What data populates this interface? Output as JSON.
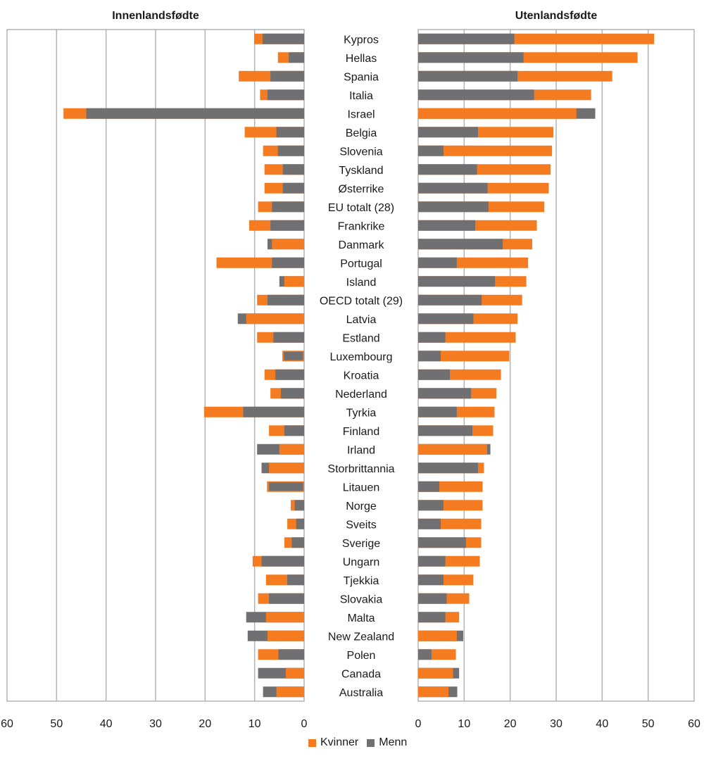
{
  "colors": {
    "kvinner": "#f47b20",
    "menn": "#707073",
    "grid": "#b3b3b3"
  },
  "chart_data": {
    "type": "bar",
    "orientation": "horizontal",
    "layout": "two mirrored panels sharing a central category axis; within each row the larger value is drawn behind the smaller",
    "panels": [
      {
        "title": "Innenlandsfødte",
        "direction": "right-to-left",
        "xlim": [
          0,
          60
        ],
        "ticks": [
          "60",
          "50",
          "40",
          "30",
          "20",
          "10",
          "0"
        ],
        "grid": true
      },
      {
        "title": "Utenlandsfødte",
        "direction": "left-to-right",
        "xlim": [
          0,
          60
        ],
        "ticks": [
          "0",
          "10",
          "20",
          "30",
          "40",
          "50",
          "60"
        ],
        "grid": true
      }
    ],
    "categories": [
      "Kypros",
      "Hellas",
      "Spania",
      "Italia",
      "Israel",
      "Belgia",
      "Slovenia",
      "Tyskland",
      "Østerrike",
      "EU totalt (28)",
      "Frankrike",
      "Danmark",
      "Portugal",
      "Island",
      "OECD totalt (29)",
      "Latvia",
      "Estland",
      "Luxembourg",
      "Kroatia",
      "Nederland",
      "Tyrkia",
      "Finland",
      "Irland",
      "Storbrittannia",
      "Litauen",
      "Norge",
      "Sveits",
      "Sverige",
      "Ungarn",
      "Tjekkia",
      "Slovakia",
      "Malta",
      "New Zealand",
      "Polen",
      "Canada",
      "Australia"
    ],
    "series": [
      {
        "name": "Kvinner",
        "panel": "Innenlandsfødte",
        "values": [
          10.1,
          5.3,
          13.2,
          8.9,
          48.6,
          12.0,
          8.3,
          8.0,
          8.0,
          9.3,
          11.1,
          6.5,
          17.7,
          4.0,
          9.5,
          11.7,
          9.5,
          4.4,
          8.0,
          6.8,
          20.2,
          7.1,
          5.0,
          7.1,
          7.5,
          2.7,
          3.4,
          4.0,
          10.4,
          7.7,
          9.3,
          7.7,
          7.4,
          9.3,
          3.7,
          5.6
        ]
      },
      {
        "name": "Menn",
        "panel": "Innenlandsfødte",
        "values": [
          8.4,
          3.1,
          6.8,
          7.4,
          44.0,
          5.6,
          5.3,
          4.3,
          4.3,
          6.5,
          6.8,
          7.4,
          6.5,
          5.0,
          7.4,
          13.4,
          6.2,
          4.3,
          5.8,
          4.7,
          12.3,
          4.0,
          9.5,
          8.6,
          7.3,
          1.9,
          1.6,
          2.5,
          8.6,
          3.4,
          7.1,
          11.7,
          11.4,
          5.2,
          9.3,
          8.3
        ]
      },
      {
        "name": "Kvinner",
        "panel": "Utenlandsfødte",
        "values": [
          51.3,
          47.7,
          42.2,
          37.6,
          34.4,
          29.4,
          29.1,
          28.8,
          28.4,
          27.4,
          25.8,
          24.8,
          23.9,
          23.5,
          22.6,
          21.6,
          21.2,
          19.8,
          18.0,
          17.0,
          16.6,
          16.3,
          15.0,
          14.3,
          14.0,
          14.0,
          13.7,
          13.7,
          13.4,
          12.0,
          11.1,
          8.9,
          8.4,
          8.2,
          7.6,
          6.6
        ]
      },
      {
        "name": "Menn",
        "panel": "Utenlandsfødte",
        "values": [
          20.9,
          22.9,
          21.6,
          25.2,
          38.5,
          13.0,
          5.5,
          12.8,
          15.1,
          15.3,
          12.4,
          18.4,
          8.4,
          16.7,
          13.8,
          12.0,
          5.9,
          4.9,
          6.9,
          11.5,
          8.4,
          11.8,
          15.7,
          13.0,
          4.6,
          5.5,
          4.9,
          10.4,
          5.9,
          5.5,
          6.2,
          5.9,
          9.8,
          2.9,
          8.9,
          8.5
        ]
      }
    ],
    "legend": {
      "entries": [
        "Kvinner",
        "Menn"
      ],
      "placement": "bottom-center"
    }
  }
}
